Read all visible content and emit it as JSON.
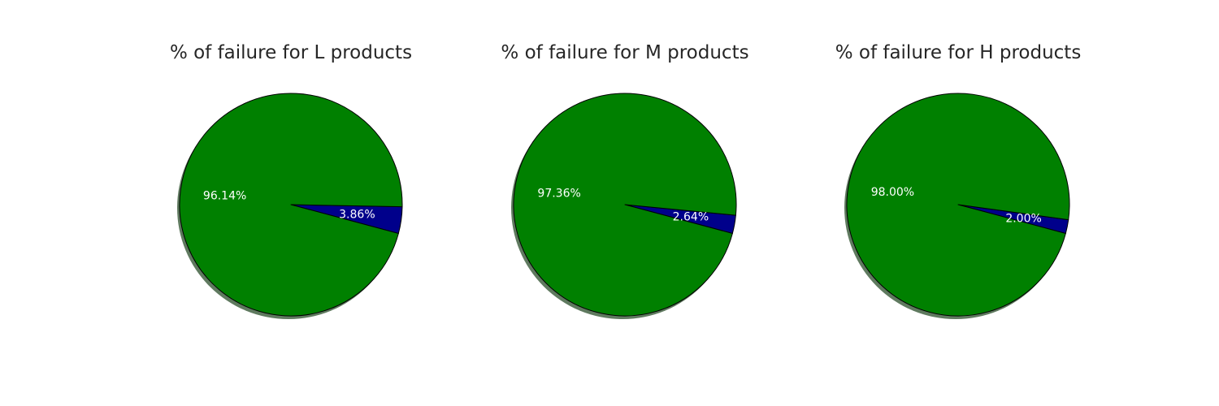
{
  "chart_data": [
    {
      "type": "pie",
      "title": "% of failure for L products",
      "values": [
        3.86,
        96.14
      ],
      "labels": [
        "3.86%",
        "96.14%"
      ],
      "colors": [
        "#00008b",
        "#008000"
      ]
    },
    {
      "type": "pie",
      "title": "% of failure for M products",
      "values": [
        2.64,
        97.36
      ],
      "labels": [
        "2.64%",
        "97.36%"
      ],
      "colors": [
        "#00008b",
        "#008000"
      ]
    },
    {
      "type": "pie",
      "title": "% of failure for H products",
      "values": [
        2.0,
        98.0
      ],
      "labels": [
        "2.00%",
        "98.00%"
      ],
      "colors": [
        "#00008b",
        "#008000"
      ]
    }
  ],
  "style": {
    "shadow_color": "#5f7a5f",
    "edge_color": "#000000",
    "start_angle_deg": -15
  }
}
